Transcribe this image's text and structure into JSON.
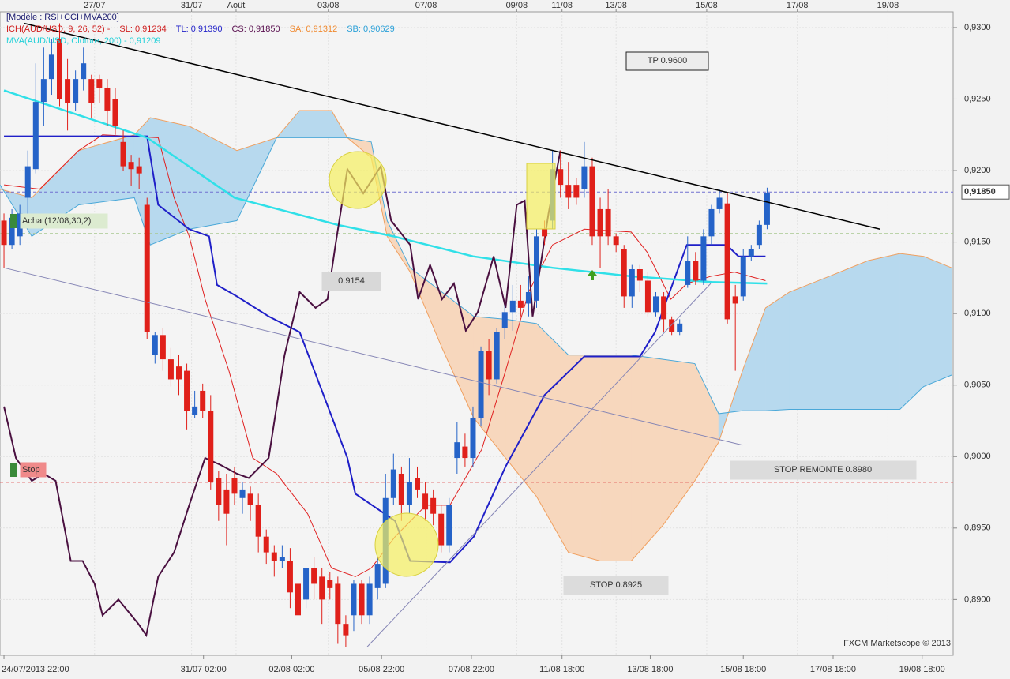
{
  "chart_data": {
    "type": "candlestick",
    "legend_lines": [
      [
        {
          "text": "[Modèle : RSI+CCI+MVA200]",
          "color": "#1a1a6e"
        }
      ],
      [
        {
          "text": "ICH(AUD/USD, 9, 26, 52) -",
          "color": "#d02020"
        },
        {
          "text": "SL: 0,91234",
          "color": "#d02020"
        },
        {
          "text": "TL: 0,91390",
          "color": "#1f1fc8"
        },
        {
          "text": "CS: 0,91850",
          "color": "#5a1050"
        },
        {
          "text": "SA: 0,91312",
          "color": "#f08a30"
        },
        {
          "text": "SB: 0,90629",
          "color": "#2aa0d8"
        }
      ],
      [
        {
          "text": "MVA(AUD/USD, Cloture, 200) - 0,91209",
          "color": "#20d0d8"
        }
      ]
    ],
    "annotations": [
      "TP 0.9600",
      "0.9154",
      "STOP REMONTE 0.8980",
      "STOP 0.8925",
      "Achat(12/08,30,2)",
      "Stop",
      "FXCM Marketscope © 2013"
    ],
    "up_color": "#2563c8",
    "down_color": "#e0201a",
    "x": [
      0,
      1,
      2,
      3,
      4,
      5,
      6,
      7,
      8,
      9,
      10,
      11,
      12,
      13,
      14,
      15,
      16,
      17,
      18,
      19,
      20,
      21,
      22,
      23,
      24,
      25,
      26,
      27,
      28,
      29,
      30,
      31,
      32,
      33,
      34,
      35,
      36,
      37,
      38,
      39,
      40,
      41,
      42,
      43,
      44,
      45,
      46,
      47,
      48,
      49,
      50,
      51,
      52,
      53,
      54,
      55,
      56,
      57,
      58,
      59,
      60,
      61,
      62,
      63,
      64,
      65,
      66,
      67,
      68,
      69,
      70,
      71,
      72,
      73,
      74,
      75,
      76,
      77,
      78,
      79,
      80,
      81,
      82,
      83,
      84,
      85,
      86,
      87,
      88,
      89,
      90,
      91,
      92,
      93,
      94,
      95,
      96
    ],
    "open": [
      0.9165,
      0.9148,
      0.9154,
      0.9181,
      0.9201,
      0.9248,
      0.9264,
      0.9292,
      0.9264,
      0.9247,
      0.9264,
      0.9264,
      0.9264,
      0.9258,
      0.925,
      0.922,
      0.9206,
      0.9203,
      0.9176,
      0.9071,
      0.9085,
      0.9068,
      0.9063,
      0.906,
      0.9029,
      0.9046,
      0.9032,
      0.8985,
      0.8977,
      0.8985,
      0.8971,
      0.8974,
      0.8966,
      0.8944,
      0.8933,
      0.8927,
      0.8927,
      0.8911,
      0.89,
      0.8922,
      0.8916,
      0.8914,
      0.8911,
      0.8883,
      0.8889,
      0.8911,
      0.8889,
      0.8908,
      0.8911,
      0.8971,
      0.8988,
      0.8966,
      0.8985,
      0.8974,
      0.8971,
      0.896,
      0.8938,
      0.8999,
      0.9007,
      0.8999,
      0.9027,
      0.9074,
      0.9054,
      0.909,
      0.9101,
      0.9109,
      0.9107,
      0.9109,
      0.9159,
      0.9165,
      0.9201,
      0.919,
      0.919,
      0.9187,
      0.9203,
      0.9173,
      0.9173,
      0.9154,
      0.9145,
      0.9112,
      0.9131,
      0.9123,
      0.9101,
      0.9112,
      0.9096,
      0.9087,
      0.912,
      0.9137,
      0.9123,
      0.9154,
      0.9173,
      0.9177,
      0.9112,
      0.9112,
      0.914,
      0.9148,
      0.9162
    ],
    "high": [
      0.917,
      0.9173,
      0.9176,
      0.9214,
      0.9275,
      0.9286,
      0.9292,
      0.9303,
      0.9278,
      0.927,
      0.9286,
      0.9267,
      0.9267,
      0.9264,
      0.9258,
      0.9228,
      0.9211,
      0.9209,
      0.9181,
      0.9087,
      0.909,
      0.9076,
      0.9071,
      0.9065,
      0.9046,
      0.9051,
      0.9043,
      0.899,
      0.8988,
      0.8993,
      0.8982,
      0.8979,
      0.8974,
      0.8949,
      0.8938,
      0.8938,
      0.8936,
      0.8919,
      0.8922,
      0.893,
      0.8922,
      0.8919,
      0.8916,
      0.8889,
      0.8914,
      0.8914,
      0.8916,
      0.893,
      0.8988,
      0.9002,
      0.8993,
      0.8999,
      0.8993,
      0.8982,
      0.8977,
      0.8966,
      0.8971,
      0.9024,
      0.9016,
      0.9035,
      0.9077,
      0.9082,
      0.909,
      0.9106,
      0.912,
      0.912,
      0.9126,
      0.9159,
      0.9165,
      0.9214,
      0.9214,
      0.9206,
      0.9195,
      0.922,
      0.9209,
      0.9181,
      0.9187,
      0.9156,
      0.9148,
      0.9134,
      0.9134,
      0.9129,
      0.9115,
      0.9115,
      0.9098,
      0.9096,
      0.9154,
      0.9143,
      0.9159,
      0.9176,
      0.9187,
      0.9184,
      0.912,
      0.9145,
      0.9148,
      0.9165,
      0.9188
    ],
    "low": [
      0.9132,
      0.9145,
      0.9148,
      0.9159,
      0.9198,
      0.9231,
      0.9253,
      0.9245,
      0.9228,
      0.9242,
      0.9256,
      0.9237,
      0.9247,
      0.9231,
      0.9225,
      0.92,
      0.9189,
      0.9187,
      0.9082,
      0.9065,
      0.906,
      0.9049,
      0.9043,
      0.9019,
      0.9027,
      0.9027,
      0.8977,
      0.8955,
      0.8938,
      0.8966,
      0.896,
      0.8955,
      0.8933,
      0.8925,
      0.8916,
      0.8922,
      0.8894,
      0.8878,
      0.8894,
      0.89,
      0.8883,
      0.89,
      0.8869,
      0.8867,
      0.8878,
      0.8883,
      0.8883,
      0.89,
      0.8908,
      0.8966,
      0.8955,
      0.896,
      0.8971,
      0.8955,
      0.8952,
      0.8933,
      0.8933,
      0.8988,
      0.8993,
      0.8993,
      0.9021,
      0.9043,
      0.9051,
      0.9082,
      0.9088,
      0.9098,
      0.9098,
      0.9104,
      0.9148,
      0.9159,
      0.9181,
      0.9173,
      0.9176,
      0.9181,
      0.9148,
      0.9132,
      0.9148,
      0.9143,
      0.9104,
      0.9104,
      0.9115,
      0.9098,
      0.9098,
      0.9087,
      0.9085,
      0.9085,
      0.9118,
      0.912,
      0.912,
      0.9148,
      0.917,
      0.9093,
      0.906,
      0.9109,
      0.9137,
      0.9145,
      0.9159
    ],
    "close": [
      0.9148,
      0.9167,
      0.917,
      0.9203,
      0.9248,
      0.9264,
      0.9281,
      0.925,
      0.9247,
      0.9264,
      0.9275,
      0.9247,
      0.9258,
      0.9242,
      0.9231,
      0.9203,
      0.9201,
      0.9198,
      0.9087,
      0.9085,
      0.9068,
      0.9054,
      0.9054,
      0.9032,
      0.9035,
      0.9032,
      0.8982,
      0.8966,
      0.896,
      0.8974,
      0.8977,
      0.8966,
      0.8944,
      0.8933,
      0.8927,
      0.893,
      0.8905,
      0.8889,
      0.8922,
      0.8911,
      0.89,
      0.8908,
      0.8883,
      0.8875,
      0.8911,
      0.8889,
      0.8911,
      0.8925,
      0.8971,
      0.8991,
      0.8966,
      0.8982,
      0.8977,
      0.8963,
      0.896,
      0.8938,
      0.8966,
      0.901,
      0.8999,
      0.9027,
      0.9074,
      0.9054,
      0.9087,
      0.9101,
      0.9109,
      0.9104,
      0.9115,
      0.9154,
      0.9154,
      0.9201,
      0.919,
      0.9181,
      0.9181,
      0.9203,
      0.9154,
      0.9154,
      0.9154,
      0.9148,
      0.9112,
      0.9131,
      0.9123,
      0.9101,
      0.9112,
      0.9096,
      0.9087,
      0.9093,
      0.9137,
      0.9123,
      0.9154,
      0.9173,
      0.9181,
      0.9096,
      0.9107,
      0.914,
      0.9145,
      0.9162,
      0.9184
    ],
    "cloud": {
      "color_up": "#b7d9ee",
      "color_down": "#f7d7bd",
      "edge_a": "#f0a060",
      "edge_b": "#4aa8d8",
      "x": [
        -0.5,
        3.5,
        9.4,
        16.4,
        18.4,
        23.3,
        29.3,
        34.3,
        37.2,
        41.2,
        43.2,
        46.2,
        48.2,
        51.1,
        55.1,
        59.1,
        63.1,
        67,
        71,
        75,
        78.9,
        82.9,
        86.9,
        89.9,
        92.9,
        95.8,
        98.8,
        103.8,
        108.7,
        112.7,
        115.7,
        119.2
      ],
      "senkou_a": [
        0.9187,
        0.9181,
        0.9214,
        0.9225,
        0.9237,
        0.9231,
        0.9214,
        0.9223,
        0.9242,
        0.9242,
        0.9223,
        0.9209,
        0.9154,
        0.9129,
        0.9076,
        0.9027,
        0.8999,
        0.8972,
        0.8933,
        0.8927,
        0.8927,
        0.8952,
        0.8983,
        0.901,
        0.906,
        0.9104,
        0.9115,
        0.9126,
        0.9137,
        0.9142,
        0.914,
        0.9132
      ],
      "senkou_b": [
        0.919,
        0.9154,
        0.9176,
        0.9181,
        0.9148,
        0.9159,
        0.9165,
        0.9223,
        0.9223,
        0.9223,
        0.9223,
        0.922,
        0.9165,
        0.9132,
        0.9115,
        0.9098,
        0.9096,
        0.9093,
        0.9071,
        0.9071,
        0.9071,
        0.9068,
        0.9065,
        0.903,
        0.9032,
        0.9032,
        0.9033,
        0.9033,
        0.9033,
        0.9033,
        0.9049,
        0.9057
      ]
    },
    "series": [
      {
        "color": "#e02020",
        "width": 1,
        "x": [
          0,
          4.5,
          9.4,
          12.4,
          19.4,
          21.4,
          23.3,
          25.3,
          28.3,
          31.3,
          34.3,
          38.2,
          41.2,
          44.2,
          46.2,
          49.2,
          53.1,
          56.1,
          60.1,
          63.1,
          66,
          69,
          73,
          78.9,
          80.9,
          83.9,
          85.9,
          88.9,
          91.9,
          95.8
        ],
        "values": [
          0.919,
          0.9187,
          0.9214,
          0.9225,
          0.9223,
          0.9181,
          0.9154,
          0.911,
          0.906,
          0.8999,
          0.8988,
          0.896,
          0.8922,
          0.8916,
          0.8922,
          0.8944,
          0.8966,
          0.8966,
          0.9005,
          0.906,
          0.9115,
          0.9148,
          0.9159,
          0.9157,
          0.9143,
          0.911,
          0.9121,
          0.9126,
          0.9129,
          0.9123
        ]
      },
      {
        "color": "#1f1fc8",
        "width": 2,
        "x": [
          0,
          18,
          19.4,
          23.3,
          25.8,
          26.8,
          29.3,
          33.3,
          37.2,
          40.2,
          43.2,
          44.2,
          49.2,
          51.1,
          56.1,
          59.1,
          63.1,
          68,
          73,
          80,
          81.9,
          85.9,
          90.9,
          92.4,
          95.8
        ],
        "values": [
          0.9224,
          0.9224,
          0.9176,
          0.9159,
          0.9154,
          0.912,
          0.9112,
          0.9098,
          0.9087,
          0.9043,
          0.8999,
          0.8974,
          0.8955,
          0.8927,
          0.8926,
          0.8944,
          0.8993,
          0.9043,
          0.907,
          0.907,
          0.9087,
          0.9148,
          0.9148,
          0.914,
          0.914
        ]
      },
      {
        "color": "#30e0e8",
        "width": 2.5,
        "x": [
          0,
          18,
          29,
          42,
          49,
          59,
          69,
          79,
          89,
          96
        ],
        "values": [
          0.9256,
          0.9223,
          0.9181,
          0.9162,
          0.9154,
          0.914,
          0.9132,
          0.9126,
          0.9122,
          0.9121
        ]
      },
      {
        "color": "#4a1040",
        "width": 2,
        "x": [
          0,
          1.5,
          3.5,
          5,
          6.5,
          8.4,
          9.9,
          11.4,
          12.4,
          14.4,
          16.9,
          17.9,
          19.4,
          21.4,
          23.3,
          25.3,
          27.3,
          29.3,
          30.8,
          33.3,
          35.3,
          37.2,
          39.2,
          40.7,
          41.7,
          43.2,
          45.2,
          47.4,
          48.7,
          51.1,
          52.1,
          53.6,
          55.1,
          56.6,
          58.1,
          59.6,
          61.6,
          63.1,
          64.5,
          65.5,
          66.5,
          68.5,
          70
        ],
        "values": [
          0.9035,
          0.8999,
          0.8983,
          0.8988,
          0.8983,
          0.8927,
          0.8927,
          0.8911,
          0.8889,
          0.89,
          0.8883,
          0.8875,
          0.8916,
          0.8933,
          0.8966,
          0.8999,
          0.8994,
          0.8988,
          0.8985,
          0.8999,
          0.9071,
          0.9115,
          0.9104,
          0.911,
          0.9148,
          0.9201,
          0.9184,
          0.9203,
          0.9165,
          0.9148,
          0.911,
          0.9134,
          0.911,
          0.9121,
          0.9088,
          0.9101,
          0.914,
          0.9104,
          0.9176,
          0.9179,
          0.9098,
          0.917,
          0.9214
        ]
      }
    ],
    "trendlines": [
      {
        "color": "#000000",
        "width": 1.5,
        "x": [
          2.5,
          110.2
        ],
        "values": [
          0.9303,
          0.9159
        ]
      },
      {
        "color": "#8585b5",
        "width": 1,
        "x": [
          0,
          92.9
        ],
        "values": [
          0.9132,
          0.9008
        ]
      },
      {
        "color": "#8585b5",
        "width": 1,
        "x": [
          45.7,
          88.9
        ],
        "values": [
          0.8867,
          0.9121
        ]
      }
    ],
    "levels": [
      {
        "value": 0.9185,
        "label": "0,91850",
        "color": "#7070d0"
      },
      {
        "value": 0.9156,
        "color": "#a8c890"
      },
      {
        "value": 0.8982,
        "color": "#e05050"
      }
    ],
    "xlim": [
      -0.5,
      119.4
    ],
    "ylim": [
      0.8861,
      0.9311
    ],
    "yticks": [
      {
        "value": 0.93,
        "label": "0,9300"
      },
      {
        "value": 0.925,
        "label": "0,9250"
      },
      {
        "value": 0.92,
        "label": "0,9200"
      },
      {
        "value": 0.915,
        "label": "0,9150"
      },
      {
        "value": 0.91,
        "label": "0,9100"
      },
      {
        "value": 0.905,
        "label": "0,9050"
      },
      {
        "value": 0.9,
        "label": "0,9000"
      },
      {
        "value": 0.895,
        "label": "0,8950"
      },
      {
        "value": 0.89,
        "label": "0,8900"
      }
    ],
    "xticks": [
      {
        "value": 0,
        "label": "24/07/2013 22:00"
      },
      {
        "value": 25.1,
        "label": "31/07 02:00"
      },
      {
        "value": 36.2,
        "label": "02/08 02:00"
      },
      {
        "value": 47.5,
        "label": "05/08 22:00"
      },
      {
        "value": 58.8,
        "label": "07/08 22:00"
      },
      {
        "value": 70.2,
        "label": "11/08 18:00"
      },
      {
        "value": 81.3,
        "label": "13/08 18:00"
      },
      {
        "value": 93,
        "label": "15/08 18:00"
      },
      {
        "value": 104.3,
        "label": "17/08 18:00"
      },
      {
        "value": 115.5,
        "label": "19/08 18:00"
      }
    ],
    "x2ticks": [
      {
        "value": 11.4,
        "label": "27/07"
      },
      {
        "value": 23.6,
        "label": "31/07"
      },
      {
        "value": 29.2,
        "label": "Août"
      },
      {
        "value": 40.8,
        "label": "03/08"
      },
      {
        "value": 53.1,
        "label": "07/08"
      },
      {
        "value": 64.5,
        "label": "09/08"
      },
      {
        "value": 70.2,
        "label": "11/08"
      },
      {
        "value": 77,
        "label": "13/08"
      },
      {
        "value": 88.4,
        "label": "15/08"
      },
      {
        "value": 99.8,
        "label": "17/08"
      },
      {
        "value": 111.2,
        "label": "19/08"
      }
    ],
    "grid": true
  }
}
